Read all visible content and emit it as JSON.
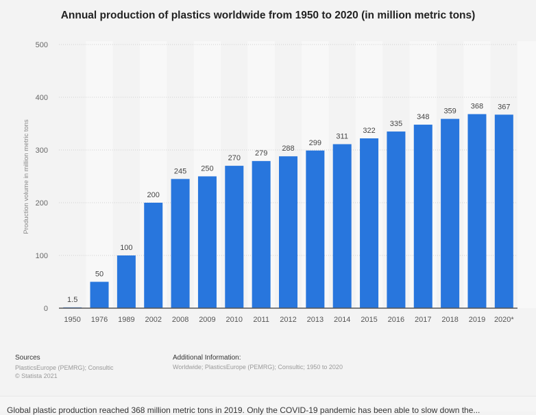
{
  "chart_data": {
    "type": "bar",
    "title": "Annual production of plastics worldwide from 1950 to 2020 (in million metric tons)",
    "xlabel": "",
    "ylabel": "Production volume in million metric tons",
    "categories": [
      "1950",
      "1976",
      "1989",
      "2002",
      "2008",
      "2009",
      "2010",
      "2011",
      "2012",
      "2013",
      "2014",
      "2015",
      "2016",
      "2017",
      "2018",
      "2019",
      "2020*"
    ],
    "values": [
      1.5,
      50,
      100,
      200,
      245,
      250,
      270,
      279,
      288,
      299,
      311,
      322,
      335,
      348,
      359,
      368,
      367
    ],
    "data_labels": [
      "1.5",
      "50",
      "100",
      "200",
      "245",
      "250",
      "270",
      "279",
      "288",
      "299",
      "311",
      "322",
      "335",
      "348",
      "359",
      "368",
      "367"
    ],
    "ylim": [
      0,
      500
    ],
    "yticks": [
      0,
      100,
      200,
      300,
      400,
      500
    ],
    "grid": true,
    "legend": "none",
    "bar_color": "#2876dd"
  },
  "sources": {
    "heading": "Sources",
    "line1": "PlasticsEurope (PEMRG); Consultic",
    "line2": "© Statista 2021"
  },
  "additional_info": {
    "heading": "Additional Information:",
    "text": "Worldwide; PlasticsEurope (PEMRG); Consultic; 1950 to 2020"
  },
  "caption": "Global plastic production reached 368 million metric tons in 2019. Only the COVID-19 pandemic has been able to slow down the..."
}
